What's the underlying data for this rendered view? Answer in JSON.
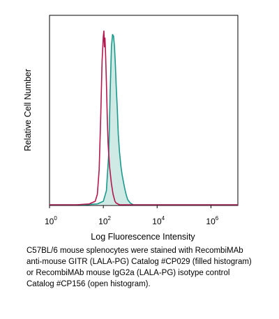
{
  "chart_data": {
    "type": "area",
    "xlabel": "Log Fluorescence Intensity",
    "ylabel": "Relative Cell Number",
    "x_scale": "log",
    "xlim": [
      1,
      10000000
    ],
    "ylim": [
      0,
      1.05
    ],
    "x_ticks": [
      {
        "value": 1,
        "base": "10",
        "exp": "0"
      },
      {
        "value": 100,
        "base": "10",
        "exp": "2"
      },
      {
        "value": 10000,
        "base": "10",
        "exp": "4"
      },
      {
        "value": 1000000,
        "base": "10",
        "exp": "6"
      }
    ],
    "grid": false,
    "series": [
      {
        "style": "filled",
        "line_color": "#1a9a8c",
        "fill_color": "#cfe9e4",
        "x": [
          1,
          20,
          60,
          100,
          130,
          160,
          180,
          200,
          220,
          240,
          260,
          280,
          300,
          330,
          360,
          400,
          450,
          500,
          560,
          630,
          700,
          800,
          1000,
          1300,
          10000000
        ],
        "y": [
          0.0,
          0.0,
          0.005,
          0.02,
          0.08,
          0.3,
          0.65,
          0.9,
          0.97,
          0.96,
          0.9,
          0.8,
          0.68,
          0.55,
          0.4,
          0.3,
          0.22,
          0.17,
          0.13,
          0.09,
          0.06,
          0.03,
          0.01,
          0.0,
          0.0
        ]
      },
      {
        "style": "open",
        "line_color": "#b5174e",
        "x": [
          1,
          10,
          30,
          50,
          60,
          70,
          80,
          90,
          100,
          105,
          110,
          115,
          120,
          130,
          140,
          150,
          170,
          200,
          230,
          270,
          300,
          400,
          10000000
        ],
        "y": [
          0.0,
          0.0,
          0.005,
          0.02,
          0.06,
          0.2,
          0.5,
          0.82,
          0.96,
          0.99,
          0.9,
          0.95,
          0.88,
          0.7,
          0.5,
          0.35,
          0.22,
          0.12,
          0.06,
          0.02,
          0.01,
          0.0,
          0.0
        ]
      }
    ]
  },
  "caption_lines": [
    "C57BL/6 mouse splenocytes were stained with RecombiMAb",
    "anti-mouse GITR (LALA-PG) Catalog #CP029  (filled histogram)",
    "or RecombiMAb mouse IgG2a (LALA-PG) isotype control",
    "Catalog #CP156 (open histogram)."
  ]
}
